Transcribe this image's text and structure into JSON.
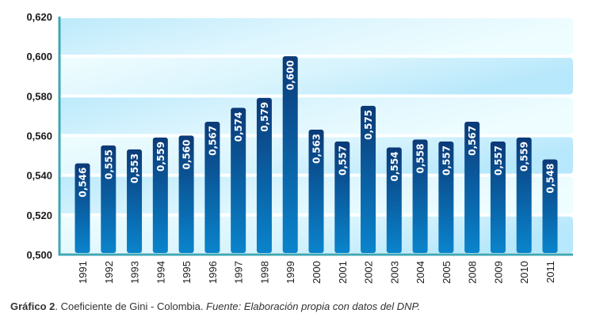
{
  "chart_data": {
    "type": "bar",
    "title": "",
    "xlabel": "",
    "ylabel": "",
    "categories": [
      "1991",
      "1992",
      "1993",
      "1994",
      "1995",
      "1996",
      "1997",
      "1998",
      "1999",
      "2000",
      "2001",
      "2002",
      "2003",
      "2004",
      "2005",
      "2008",
      "2009",
      "2010",
      "2011"
    ],
    "values": [
      0.546,
      0.555,
      0.553,
      0.559,
      0.56,
      0.567,
      0.574,
      0.579,
      0.6,
      0.563,
      0.557,
      0.575,
      0.554,
      0.558,
      0.557,
      0.567,
      0.557,
      0.559,
      0.548
    ],
    "data_labels": [
      "0,546",
      "0,555",
      "0,553",
      "0,559",
      "0,560",
      "0,567",
      "0,574",
      "0,579",
      "0,600",
      "0,563",
      "0,557",
      "0,575",
      "0,554",
      "0,558",
      "0,557",
      "0,567",
      "0,557",
      "0,559",
      "0,548"
    ],
    "ylim": [
      0.5,
      0.62
    ],
    "yticks": [
      0.5,
      0.52,
      0.54,
      0.56,
      0.58,
      0.6,
      0.62
    ],
    "ytick_labels": [
      "0,500",
      "0,520",
      "0,540",
      "0,560",
      "0,580",
      "0,600",
      "0,620"
    ],
    "grid": true,
    "legend": "none",
    "colors": {
      "bar_top": "#0b3a78",
      "bar_bottom": "#0a84cc",
      "band_dark": "#bfeafb",
      "band_light": "#ecfcff",
      "axis": "#3fa7b5"
    }
  },
  "caption": {
    "label": "Gráfico 2",
    "title": ". Coeficiente de Gini - Colombia. ",
    "source": "Fuente: Elaboración propia con datos del DNP."
  }
}
